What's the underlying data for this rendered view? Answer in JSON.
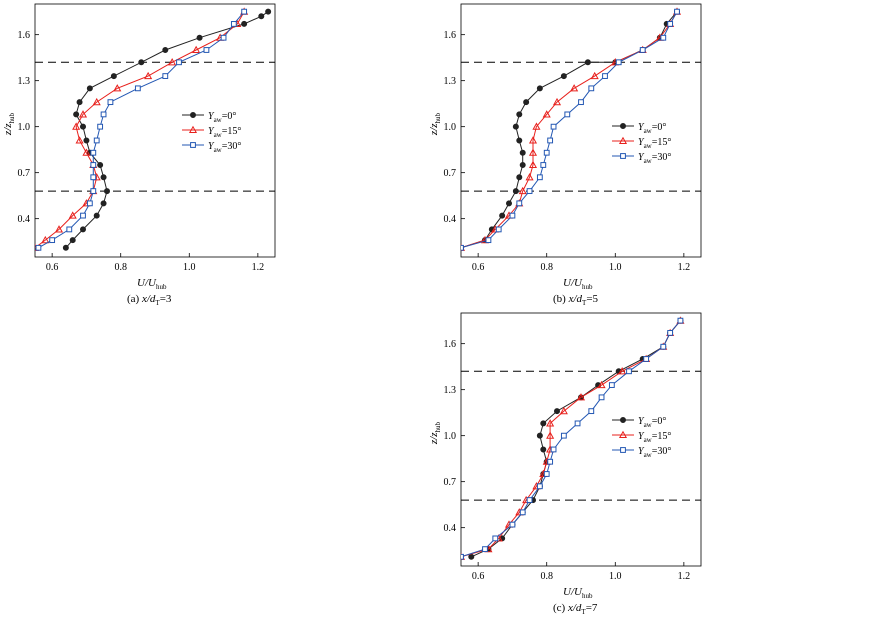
{
  "colors": {
    "yaw0": "#222222",
    "yaw15": "#e8201c",
    "yaw30": "#2357b3",
    "dashed": "#000000"
  },
  "legend_symbol": "Y",
  "legend_subscript": "aw",
  "y_label": "z/z",
  "y_label_sub": "hub",
  "x_label": "U/U",
  "x_label_sub": "hub",
  "chart_data": [
    {
      "type": "line",
      "caption": "(a) x/d",
      "caption_sub": "T",
      "caption_suffix": "=3",
      "xlim": [
        0.55,
        1.25
      ],
      "ylim": [
        0.15,
        1.8
      ],
      "xticks": [
        0.6,
        0.8,
        1.0,
        1.2
      ],
      "xtick_labels": [
        "0.6",
        "0.8",
        "1.0",
        "1.2"
      ],
      "yticks": [
        0.4,
        0.7,
        1.0,
        1.3,
        1.6
      ],
      "ytick_labels": [
        "0.4",
        "0.7",
        "1.0",
        "1.3",
        "1.6"
      ],
      "hlines": [
        0.58,
        1.42
      ],
      "legend_position": "right-middle",
      "series": [
        {
          "name": "=0°",
          "key": "yaw0",
          "marker": "circle",
          "x": [
            0.64,
            0.66,
            0.69,
            0.73,
            0.75,
            0.76,
            0.75,
            0.74,
            0.71,
            0.7,
            0.69,
            0.67,
            0.68,
            0.71,
            0.78,
            0.86,
            0.93,
            1.03,
            1.16,
            1.21,
            1.23
          ],
          "y": [
            0.21,
            0.26,
            0.33,
            0.42,
            0.5,
            0.58,
            0.67,
            0.75,
            0.83,
            0.91,
            1.0,
            1.08,
            1.16,
            1.25,
            1.33,
            1.42,
            1.5,
            1.58,
            1.67,
            1.72,
            1.75
          ]
        },
        {
          "name": "=15°",
          "key": "yaw15",
          "marker": "triangle",
          "x": [
            0.55,
            0.58,
            0.62,
            0.66,
            0.7,
            0.72,
            0.73,
            0.72,
            0.7,
            0.68,
            0.67,
            0.69,
            0.73,
            0.79,
            0.88,
            0.95,
            1.02,
            1.09,
            1.14,
            1.16
          ],
          "y": [
            0.21,
            0.26,
            0.33,
            0.42,
            0.5,
            0.58,
            0.67,
            0.75,
            0.83,
            0.91,
            1.0,
            1.08,
            1.16,
            1.25,
            1.33,
            1.42,
            1.5,
            1.58,
            1.67,
            1.75
          ]
        },
        {
          "name": "=30°",
          "key": "yaw30",
          "marker": "square",
          "x": [
            0.56,
            0.6,
            0.65,
            0.69,
            0.71,
            0.72,
            0.72,
            0.72,
            0.72,
            0.73,
            0.74,
            0.75,
            0.77,
            0.85,
            0.93,
            0.97,
            1.05,
            1.1,
            1.13,
            1.16
          ],
          "y": [
            0.21,
            0.26,
            0.33,
            0.42,
            0.5,
            0.58,
            0.67,
            0.75,
            0.83,
            0.91,
            1.0,
            1.08,
            1.16,
            1.25,
            1.33,
            1.42,
            1.5,
            1.58,
            1.67,
            1.75
          ]
        }
      ]
    },
    {
      "type": "line",
      "caption": "(b) x/d",
      "caption_sub": "T",
      "caption_suffix": "=5",
      "xlim": [
        0.55,
        1.25
      ],
      "ylim": [
        0.15,
        1.8
      ],
      "xticks": [
        0.6,
        0.8,
        1.0,
        1.2
      ],
      "xtick_labels": [
        "0.6",
        "0.8",
        "1.0",
        "1.2"
      ],
      "yticks": [
        0.4,
        0.7,
        1.0,
        1.3,
        1.6
      ],
      "ytick_labels": [
        "0.4",
        "0.7",
        "1.0",
        "1.3",
        "1.6"
      ],
      "hlines": [
        0.58,
        1.42
      ],
      "legend_position": "right-middle",
      "series": [
        {
          "name": "=0°",
          "key": "yaw0",
          "marker": "circle",
          "x": [
            0.55,
            0.62,
            0.64,
            0.67,
            0.69,
            0.71,
            0.72,
            0.73,
            0.73,
            0.72,
            0.71,
            0.72,
            0.74,
            0.78,
            0.85,
            0.92,
            1.0,
            1.08,
            1.13,
            1.15,
            1.18
          ],
          "y": [
            0.21,
            0.26,
            0.33,
            0.42,
            0.5,
            0.58,
            0.67,
            0.75,
            0.83,
            0.91,
            1.0,
            1.08,
            1.16,
            1.25,
            1.33,
            1.42,
            1.42,
            1.5,
            1.58,
            1.67,
            1.75
          ]
        },
        {
          "name": "=15°",
          "key": "yaw15",
          "marker": "triangle",
          "x": [
            0.55,
            0.62,
            0.65,
            0.69,
            0.72,
            0.73,
            0.75,
            0.76,
            0.76,
            0.76,
            0.77,
            0.8,
            0.83,
            0.88,
            0.94,
            1.0,
            1.08,
            1.13,
            1.16,
            1.18
          ],
          "y": [
            0.21,
            0.26,
            0.33,
            0.42,
            0.5,
            0.58,
            0.67,
            0.75,
            0.83,
            0.91,
            1.0,
            1.08,
            1.16,
            1.25,
            1.33,
            1.42,
            1.5,
            1.58,
            1.67,
            1.75
          ]
        },
        {
          "name": "=30°",
          "key": "yaw30",
          "marker": "square",
          "x": [
            0.55,
            0.63,
            0.66,
            0.7,
            0.72,
            0.75,
            0.78,
            0.79,
            0.8,
            0.81,
            0.82,
            0.86,
            0.9,
            0.93,
            0.97,
            1.01,
            1.08,
            1.14,
            1.16,
            1.18
          ],
          "y": [
            0.21,
            0.26,
            0.33,
            0.42,
            0.5,
            0.58,
            0.67,
            0.75,
            0.83,
            0.91,
            1.0,
            1.08,
            1.16,
            1.25,
            1.33,
            1.42,
            1.5,
            1.58,
            1.67,
            1.75
          ]
        }
      ]
    },
    {
      "type": "line",
      "caption": "(c) x/d",
      "caption_sub": "T",
      "caption_suffix": "=7",
      "xlim": [
        0.55,
        1.25
      ],
      "ylim": [
        0.15,
        1.8
      ],
      "xticks": [
        0.6,
        0.8,
        1.0,
        1.2
      ],
      "xtick_labels": [
        "0.6",
        "0.8",
        "1.0",
        "1.2"
      ],
      "yticks": [
        0.4,
        0.7,
        1.0,
        1.3,
        1.6
      ],
      "ytick_labels": [
        "0.4",
        "0.7",
        "1.0",
        "1.3",
        "1.6"
      ],
      "hlines": [
        0.58,
        1.42
      ],
      "legend_position": "right-middle",
      "series": [
        {
          "name": "=0°",
          "key": "yaw0",
          "marker": "circle",
          "x": [
            0.58,
            0.63,
            0.67,
            0.7,
            0.73,
            0.76,
            0.78,
            0.79,
            0.8,
            0.79,
            0.78,
            0.79,
            0.83,
            0.9,
            0.95,
            1.01,
            1.08,
            1.14,
            1.16,
            1.19
          ],
          "y": [
            0.21,
            0.26,
            0.33,
            0.42,
            0.5,
            0.58,
            0.67,
            0.75,
            0.83,
            0.91,
            1.0,
            1.08,
            1.16,
            1.25,
            1.33,
            1.42,
            1.5,
            1.58,
            1.67,
            1.75
          ]
        },
        {
          "name": "=15°",
          "key": "yaw15",
          "marker": "triangle",
          "x": [
            0.55,
            0.63,
            0.66,
            0.69,
            0.72,
            0.74,
            0.77,
            0.79,
            0.8,
            0.81,
            0.81,
            0.81,
            0.85,
            0.9,
            0.96,
            1.02,
            1.09,
            1.14,
            1.16,
            1.19
          ],
          "y": [
            0.21,
            0.26,
            0.33,
            0.42,
            0.5,
            0.58,
            0.67,
            0.75,
            0.83,
            0.91,
            1.0,
            1.08,
            1.16,
            1.25,
            1.33,
            1.42,
            1.5,
            1.58,
            1.67,
            1.75
          ]
        },
        {
          "name": "=30°",
          "key": "yaw30",
          "marker": "square",
          "x": [
            0.55,
            0.62,
            0.65,
            0.7,
            0.73,
            0.75,
            0.78,
            0.8,
            0.81,
            0.82,
            0.85,
            0.89,
            0.93,
            0.96,
            0.99,
            1.04,
            1.09,
            1.14,
            1.16,
            1.19
          ],
          "y": [
            0.21,
            0.26,
            0.33,
            0.42,
            0.5,
            0.58,
            0.67,
            0.75,
            0.83,
            0.91,
            1.0,
            1.08,
            1.16,
            1.25,
            1.33,
            1.42,
            1.5,
            1.58,
            1.67,
            1.75
          ]
        }
      ]
    }
  ]
}
